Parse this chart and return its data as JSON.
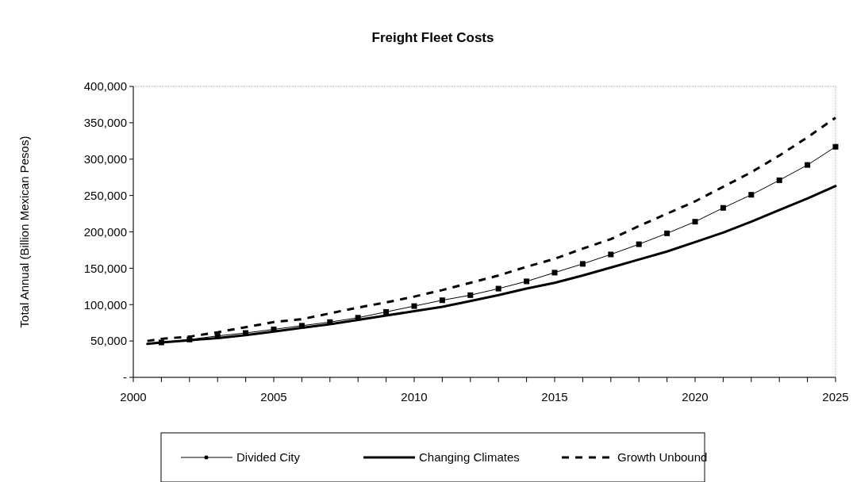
{
  "chart_data": {
    "type": "line",
    "title": "Freight Fleet Costs",
    "ylabel": "Total Annual (Billion Mexican Pesos)",
    "x": [
      2000.5,
      2001,
      2002,
      2003,
      2004,
      2005,
      2006,
      2007,
      2008,
      2009,
      2010,
      2011,
      2012,
      2013,
      2014,
      2015,
      2016,
      2017,
      2018,
      2019,
      2020,
      2021,
      2022,
      2023,
      2024,
      2025
    ],
    "series": [
      {
        "name": "Divided City",
        "color": "#000000",
        "marker": "square",
        "line_style": "solid",
        "x": [
          2001,
          2002,
          2003,
          2004,
          2005,
          2006,
          2007,
          2008,
          2009,
          2010,
          2011,
          2012,
          2013,
          2014,
          2015,
          2016,
          2017,
          2018,
          2019,
          2020,
          2021,
          2022,
          2023,
          2024,
          2025
        ],
        "values": [
          48000,
          52000,
          57000,
          61000,
          66000,
          71000,
          76000,
          82000,
          90000,
          98000,
          106000,
          113000,
          122000,
          132000,
          144000,
          156000,
          169000,
          183000,
          198000,
          214000,
          233000,
          251000,
          271000,
          292000,
          317000
        ]
      },
      {
        "name": "Changing Climates",
        "color": "#000000",
        "marker": "none",
        "line_style": "solid",
        "values": [
          46000,
          48000,
          51000,
          54000,
          58000,
          63000,
          68000,
          73000,
          79000,
          85000,
          91000,
          97000,
          105000,
          113000,
          122000,
          130000,
          140000,
          151000,
          162000,
          173000,
          186000,
          199000,
          214000,
          230000,
          246000,
          263000
        ]
      },
      {
        "name": "Growth Unbound",
        "color": "#000000",
        "marker": "none",
        "line_style": "dashed",
        "values": [
          50000,
          53000,
          56000,
          62000,
          69000,
          76000,
          80000,
          88000,
          96000,
          103000,
          111000,
          120000,
          130000,
          140000,
          152000,
          163000,
          177000,
          190000,
          208000,
          225000,
          242000,
          262000,
          282000,
          305000,
          330000,
          357000
        ]
      }
    ],
    "xlim": [
      2000,
      2025
    ],
    "xticks": [
      2000,
      {
        "value": 2001,
        "label": null
      },
      {
        "value": 2002,
        "label": null
      },
      {
        "value": 2003,
        "label": null
      },
      {
        "value": 2004,
        "label": null
      },
      2005,
      {
        "value": 2006,
        "label": null
      },
      {
        "value": 2007,
        "label": null
      },
      {
        "value": 2008,
        "label": null
      },
      {
        "value": 2009,
        "label": null
      },
      2010,
      {
        "value": 2011,
        "label": null
      },
      {
        "value": 2012,
        "label": null
      },
      {
        "value": 2013,
        "label": null
      },
      {
        "value": 2014,
        "label": null
      },
      2015,
      {
        "value": 2016,
        "label": null
      },
      {
        "value": 2017,
        "label": null
      },
      {
        "value": 2018,
        "label": null
      },
      {
        "value": 2019,
        "label": null
      },
      2020,
      {
        "value": 2021,
        "label": null
      },
      {
        "value": 2022,
        "label": null
      },
      {
        "value": 2023,
        "label": null
      },
      {
        "value": 2024,
        "label": null
      },
      2025
    ],
    "ylim": [
      0,
      400000
    ],
    "yticks": [
      {
        "value": 0,
        "label": "-"
      },
      {
        "value": 50000,
        "label": "50,000"
      },
      {
        "value": 100000,
        "label": "100,000"
      },
      {
        "value": 150000,
        "label": "150,000"
      },
      {
        "value": 200000,
        "label": "200,000"
      },
      {
        "value": 250000,
        "label": "250,000"
      },
      {
        "value": 300000,
        "label": "300,000"
      },
      {
        "value": 350000,
        "label": "350,000"
      },
      {
        "value": 400000,
        "label": "400,000"
      }
    ],
    "grid": false,
    "legend": "bottom"
  }
}
